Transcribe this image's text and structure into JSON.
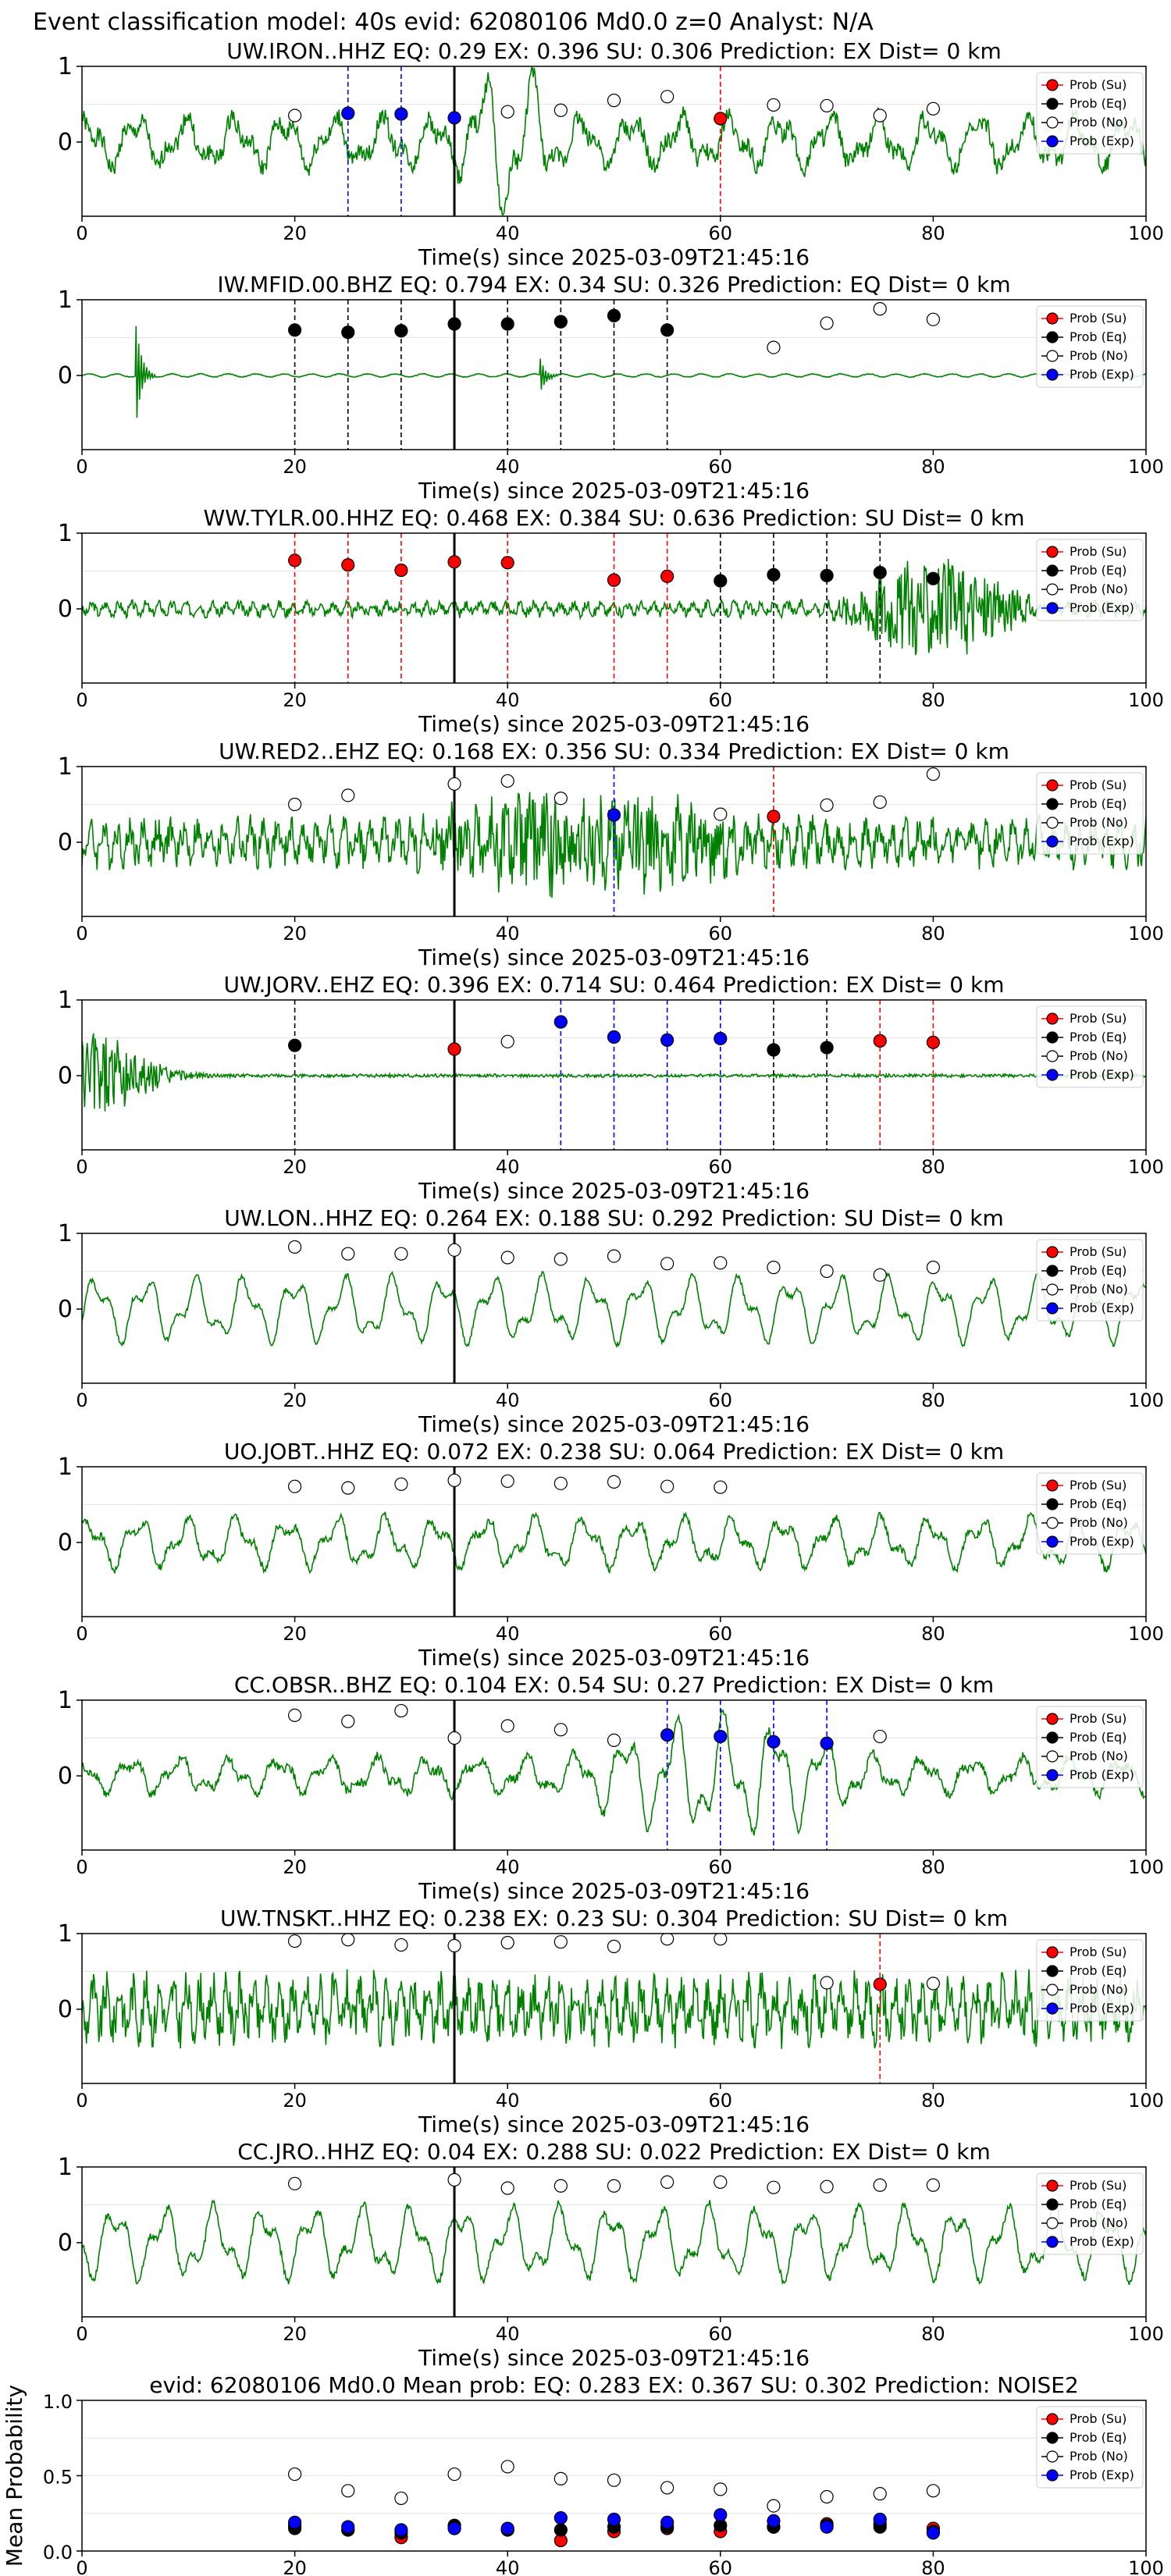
{
  "suptitle": "Event classification model: 40s evid: 62080106 Md0.0 z=0 Analyst: N/A",
  "colors": {
    "su": "#ff0000",
    "eq": "#000000",
    "no": "#ffffff",
    "exp": "#0000ff",
    "trace": "#008000"
  },
  "legend": [
    "Prob (Su)",
    "Prob (Eq)",
    "Prob (No)",
    "Prob (Exp)"
  ],
  "xlabel": "Time(s) since 2025-03-09T21:45:16",
  "chart_data": [
    {
      "type": "line",
      "title": "UW.IRON..HHZ   EQ: 0.29   EX: 0.396   SU: 0.306    Prediction: EX    Dist= 0 km",
      "xlabel": "Time(s) since 2025-03-09T21:45:16",
      "xlim": [
        0,
        100
      ],
      "xticks": [
        0,
        20,
        40,
        60,
        80,
        100
      ],
      "yticks": [
        0,
        1
      ],
      "event_line": 35,
      "trace": {
        "seed": 1,
        "kind": "osc",
        "amp": 0.35,
        "noise": 0.12,
        "burst": [
          35,
          45,
          0.8
        ]
      },
      "points": [
        [
          20,
          "no",
          0.35
        ],
        [
          25,
          "exp",
          0.38
        ],
        [
          30,
          "exp",
          0.37
        ],
        [
          35,
          "exp",
          0.32
        ],
        [
          40,
          "no",
          0.4
        ],
        [
          45,
          "no",
          0.42
        ],
        [
          50,
          "no",
          0.55
        ],
        [
          55,
          "no",
          0.6
        ],
        [
          60,
          "su",
          0.31
        ],
        [
          65,
          "no",
          0.49
        ],
        [
          70,
          "no",
          0.48
        ],
        [
          75,
          "no",
          0.35
        ],
        [
          80,
          "no",
          0.44
        ]
      ],
      "marks": [
        [
          25,
          "exp"
        ],
        [
          30,
          "exp"
        ],
        [
          60,
          "su"
        ]
      ]
    },
    {
      "type": "line",
      "title": "IW.MFID.00.BHZ   EQ: 0.794   EX: 0.34   SU: 0.326    Prediction: EQ    Dist= 0 km",
      "xlabel": "Time(s) since 2025-03-09T21:45:16",
      "xlim": [
        0,
        100
      ],
      "xticks": [
        0,
        20,
        40,
        60,
        80,
        100
      ],
      "yticks": [
        0,
        1
      ],
      "event_line": 35,
      "trace": {
        "seed": 2,
        "kind": "flat",
        "amp": 0.02,
        "noise": 0.01,
        "spikes": [
          [
            5,
            0.9
          ],
          [
            43,
            0.3
          ]
        ]
      },
      "points": [
        [
          20,
          "eq",
          0.6
        ],
        [
          25,
          "eq",
          0.57
        ],
        [
          30,
          "eq",
          0.59
        ],
        [
          35,
          "eq",
          0.68
        ],
        [
          40,
          "eq",
          0.68
        ],
        [
          45,
          "eq",
          0.71
        ],
        [
          50,
          "eq",
          0.79
        ],
        [
          55,
          "eq",
          0.6
        ],
        [
          65,
          "no",
          0.37
        ],
        [
          70,
          "no",
          0.69
        ],
        [
          75,
          "no",
          0.88
        ],
        [
          80,
          "no",
          0.74
        ]
      ],
      "marks": [
        [
          20,
          "eq"
        ],
        [
          25,
          "eq"
        ],
        [
          30,
          "eq"
        ],
        [
          40,
          "eq"
        ],
        [
          45,
          "eq"
        ],
        [
          50,
          "eq"
        ],
        [
          55,
          "eq"
        ]
      ]
    },
    {
      "type": "line",
      "title": "WW.TYLR.00.HHZ   EQ: 0.468   EX: 0.384   SU: 0.636    Prediction: SU    Dist= 0 km",
      "xlabel": "Time(s) since 2025-03-09T21:45:16",
      "xlim": [
        0,
        100
      ],
      "xticks": [
        0,
        20,
        40,
        60,
        80,
        100
      ],
      "yticks": [
        0,
        1
      ],
      "event_line": 35,
      "trace": {
        "seed": 3,
        "kind": "noise",
        "amp": 0.08,
        "noise": 0.06,
        "burst": [
          70,
          90,
          0.7
        ]
      },
      "points": [
        [
          20,
          "su",
          0.64
        ],
        [
          25,
          "su",
          0.58
        ],
        [
          30,
          "su",
          0.51
        ],
        [
          35,
          "su",
          0.62
        ],
        [
          40,
          "su",
          0.61
        ],
        [
          50,
          "su",
          0.38
        ],
        [
          55,
          "su",
          0.43
        ],
        [
          60,
          "eq",
          0.37
        ],
        [
          65,
          "eq",
          0.45
        ],
        [
          70,
          "eq",
          0.44
        ],
        [
          75,
          "eq",
          0.48
        ],
        [
          80,
          "eq",
          0.4
        ]
      ],
      "marks": [
        [
          20,
          "su"
        ],
        [
          25,
          "su"
        ],
        [
          30,
          "su"
        ],
        [
          40,
          "su"
        ],
        [
          50,
          "su"
        ],
        [
          55,
          "su"
        ],
        [
          60,
          "eq"
        ],
        [
          65,
          "eq"
        ],
        [
          70,
          "eq"
        ],
        [
          75,
          "eq"
        ]
      ]
    },
    {
      "type": "line",
      "title": "UW.RED2..EHZ   EQ: 0.168   EX: 0.356   SU: 0.334    Prediction: EX    Dist= 0 km",
      "xlabel": "Time(s) since 2025-03-09T21:45:16",
      "xlim": [
        0,
        100
      ],
      "xticks": [
        0,
        20,
        40,
        60,
        80,
        100
      ],
      "yticks": [
        0,
        1
      ],
      "event_line": 35,
      "trace": {
        "seed": 4,
        "kind": "noise",
        "amp": 0.25,
        "noise": 0.18,
        "burst": [
          30,
          65,
          0.5
        ]
      },
      "points": [
        [
          20,
          "no",
          0.5
        ],
        [
          25,
          "no",
          0.62
        ],
        [
          35,
          "no",
          0.77
        ],
        [
          40,
          "no",
          0.81
        ],
        [
          45,
          "no",
          0.58
        ],
        [
          50,
          "exp",
          0.36
        ],
        [
          60,
          "no",
          0.37
        ],
        [
          65,
          "su",
          0.34
        ],
        [
          70,
          "no",
          0.49
        ],
        [
          75,
          "no",
          0.53
        ],
        [
          80,
          "no",
          0.9
        ]
      ],
      "marks": [
        [
          50,
          "exp"
        ],
        [
          65,
          "su"
        ]
      ]
    },
    {
      "type": "line",
      "title": "UW.JORV..EHZ   EQ: 0.396   EX: 0.714   SU: 0.464    Prediction: EX    Dist= 0 km",
      "xlabel": "Time(s) since 2025-03-09T21:45:16",
      "xlim": [
        0,
        100
      ],
      "xticks": [
        0,
        20,
        40,
        60,
        80,
        100
      ],
      "yticks": [
        0,
        1
      ],
      "event_line": 35,
      "trace": {
        "seed": 5,
        "kind": "decay",
        "amp": 0.6,
        "noise": 0.01,
        "burst": [
          0,
          10,
          0.6
        ]
      },
      "points": [
        [
          20,
          "eq",
          0.4
        ],
        [
          35,
          "su",
          0.35
        ],
        [
          40,
          "no",
          0.45
        ],
        [
          45,
          "exp",
          0.71
        ],
        [
          50,
          "exp",
          0.51
        ],
        [
          55,
          "exp",
          0.47
        ],
        [
          60,
          "exp",
          0.49
        ],
        [
          65,
          "eq",
          0.34
        ],
        [
          70,
          "eq",
          0.37
        ],
        [
          75,
          "su",
          0.46
        ],
        [
          80,
          "su",
          0.44
        ]
      ],
      "marks": [
        [
          20,
          "eq"
        ],
        [
          45,
          "exp"
        ],
        [
          50,
          "exp"
        ],
        [
          55,
          "exp"
        ],
        [
          60,
          "exp"
        ],
        [
          65,
          "eq"
        ],
        [
          70,
          "eq"
        ],
        [
          75,
          "su"
        ],
        [
          80,
          "su"
        ]
      ]
    },
    {
      "type": "line",
      "title": "UW.LON..HHZ   EQ: 0.264   EX: 0.188   SU: 0.292    Prediction: SU    Dist= 0 km",
      "xlabel": "Time(s) since 2025-03-09T21:45:16",
      "xlim": [
        0,
        100
      ],
      "xticks": [
        0,
        20,
        40,
        60,
        80,
        100
      ],
      "yticks": [
        0,
        1
      ],
      "event_line": 35,
      "trace": {
        "seed": 6,
        "kind": "osc",
        "amp": 0.45,
        "noise": 0.03
      },
      "points": [
        [
          20,
          "no",
          0.82
        ],
        [
          25,
          "no",
          0.73
        ],
        [
          30,
          "no",
          0.73
        ],
        [
          35,
          "no",
          0.78
        ],
        [
          40,
          "no",
          0.68
        ],
        [
          45,
          "no",
          0.66
        ],
        [
          50,
          "no",
          0.7
        ],
        [
          55,
          "no",
          0.6
        ],
        [
          60,
          "no",
          0.61
        ],
        [
          65,
          "no",
          0.55
        ],
        [
          70,
          "no",
          0.5
        ],
        [
          75,
          "no",
          0.45
        ],
        [
          80,
          "no",
          0.55
        ]
      ],
      "marks": []
    },
    {
      "type": "line",
      "title": "UO.JOBT..HHZ   EQ: 0.072   EX: 0.238   SU: 0.064    Prediction: EX    Dist= 0 km",
      "xlabel": "Time(s) since 2025-03-09T21:45:16",
      "xlim": [
        0,
        100
      ],
      "xticks": [
        0,
        20,
        40,
        60,
        80,
        100
      ],
      "yticks": [
        0,
        1
      ],
      "event_line": 35,
      "trace": {
        "seed": 7,
        "kind": "osc",
        "amp": 0.35,
        "noise": 0.05
      },
      "points": [
        [
          20,
          "no",
          0.74
        ],
        [
          25,
          "no",
          0.72
        ],
        [
          30,
          "no",
          0.77
        ],
        [
          35,
          "no",
          0.82
        ],
        [
          40,
          "no",
          0.81
        ],
        [
          45,
          "no",
          0.78
        ],
        [
          50,
          "no",
          0.8
        ],
        [
          55,
          "no",
          0.74
        ],
        [
          60,
          "no",
          0.73
        ]
      ],
      "marks": []
    },
    {
      "type": "line",
      "title": "CC.OBSR..BHZ   EQ: 0.104   EX: 0.54   SU: 0.27    Prediction: EX    Dist= 0 km",
      "xlabel": "Time(s) since 2025-03-09T21:45:16",
      "xlim": [
        0,
        100
      ],
      "xticks": [
        0,
        20,
        40,
        60,
        80,
        100
      ],
      "yticks": [
        0,
        1
      ],
      "event_line": 35,
      "trace": {
        "seed": 8,
        "kind": "osc",
        "amp": 0.25,
        "noise": 0.06,
        "burst": [
          45,
          75,
          0.6
        ]
      },
      "points": [
        [
          20,
          "no",
          0.8
        ],
        [
          25,
          "no",
          0.72
        ],
        [
          30,
          "no",
          0.86
        ],
        [
          35,
          "no",
          0.5
        ],
        [
          40,
          "no",
          0.66
        ],
        [
          45,
          "no",
          0.61
        ],
        [
          50,
          "no",
          0.47
        ],
        [
          55,
          "exp",
          0.54
        ],
        [
          60,
          "exp",
          0.52
        ],
        [
          65,
          "exp",
          0.45
        ],
        [
          70,
          "exp",
          0.43
        ],
        [
          75,
          "no",
          0.52
        ]
      ],
      "marks": [
        [
          55,
          "exp"
        ],
        [
          60,
          "exp"
        ],
        [
          65,
          "exp"
        ],
        [
          70,
          "exp"
        ]
      ]
    },
    {
      "type": "line",
      "title": "UW.TNSKT..HHZ   EQ: 0.238   EX: 0.23   SU: 0.304    Prediction: SU    Dist= 0 km",
      "xlabel": "Time(s) since 2025-03-09T21:45:16",
      "xlim": [
        0,
        100
      ],
      "xticks": [
        0,
        20,
        40,
        60,
        80,
        100
      ],
      "yticks": [
        0,
        1
      ],
      "event_line": 35,
      "trace": {
        "seed": 9,
        "kind": "noise",
        "amp": 0.35,
        "noise": 0.25
      },
      "points": [
        [
          20,
          "no",
          0.9
        ],
        [
          25,
          "no",
          0.92
        ],
        [
          30,
          "no",
          0.85
        ],
        [
          35,
          "no",
          0.84
        ],
        [
          40,
          "no",
          0.88
        ],
        [
          45,
          "no",
          0.89
        ],
        [
          50,
          "no",
          0.83
        ],
        [
          55,
          "no",
          0.93
        ],
        [
          60,
          "no",
          0.93
        ],
        [
          70,
          "no",
          0.35
        ],
        [
          75,
          "su",
          0.33
        ],
        [
          80,
          "no",
          0.34
        ]
      ],
      "marks": [
        [
          75,
          "su"
        ]
      ]
    },
    {
      "type": "line",
      "title": "CC.JRO..HHZ   EQ: 0.04   EX: 0.288   SU: 0.022    Prediction: EX    Dist= 0 km",
      "xlabel": "Time(s) since 2025-03-09T21:45:16",
      "xlim": [
        0,
        100
      ],
      "xticks": [
        0,
        20,
        40,
        60,
        80,
        100
      ],
      "yticks": [
        0,
        1
      ],
      "event_line": 35,
      "trace": {
        "seed": 10,
        "kind": "osc",
        "amp": 0.5,
        "noise": 0.05
      },
      "points": [
        [
          20,
          "no",
          0.78
        ],
        [
          35,
          "no",
          0.83
        ],
        [
          40,
          "no",
          0.72
        ],
        [
          45,
          "no",
          0.75
        ],
        [
          50,
          "no",
          0.75
        ],
        [
          55,
          "no",
          0.8
        ],
        [
          60,
          "no",
          0.8
        ],
        [
          65,
          "no",
          0.73
        ],
        [
          70,
          "no",
          0.74
        ],
        [
          75,
          "no",
          0.76
        ],
        [
          80,
          "no",
          0.76
        ]
      ],
      "marks": []
    },
    {
      "type": "scatter",
      "title": "evid: 62080106  Md0.0   Mean prob:   EQ: 0.283  EX: 0.367  SU: 0.302   Prediction: NOISE2",
      "xlabel": "",
      "ylabel": "Mean Probability",
      "xlim": [
        0,
        100
      ],
      "ylim": [
        0,
        1
      ],
      "xticks": [
        0,
        20,
        40,
        60,
        80,
        100
      ],
      "yticks": [
        0.0,
        0.5,
        1.0
      ],
      "series": [
        {
          "name": "Prob (Su)",
          "key": "su",
          "x": [
            20,
            25,
            30,
            35,
            40,
            45,
            50,
            55,
            60,
            65,
            70,
            75,
            80
          ],
          "y": [
            0.17,
            0.14,
            0.09,
            0.15,
            0.14,
            0.07,
            0.13,
            0.15,
            0.13,
            0.16,
            0.18,
            0.18,
            0.15
          ]
        },
        {
          "name": "Prob (Eq)",
          "key": "eq",
          "x": [
            20,
            25,
            30,
            35,
            40,
            45,
            50,
            55,
            60,
            65,
            70,
            75,
            80
          ],
          "y": [
            0.15,
            0.14,
            0.12,
            0.17,
            0.14,
            0.14,
            0.16,
            0.16,
            0.17,
            0.16,
            0.17,
            0.16,
            0.13
          ]
        },
        {
          "name": "Prob (No)",
          "key": "no",
          "x": [
            20,
            25,
            30,
            35,
            40,
            45,
            50,
            55,
            60,
            65,
            70,
            75,
            80
          ],
          "y": [
            0.51,
            0.4,
            0.35,
            0.51,
            0.56,
            0.48,
            0.47,
            0.42,
            0.41,
            0.3,
            0.36,
            0.38,
            0.4
          ]
        },
        {
          "name": "Prob (Exp)",
          "key": "exp",
          "x": [
            20,
            25,
            30,
            35,
            40,
            45,
            50,
            55,
            60,
            65,
            70,
            75,
            80
          ],
          "y": [
            0.19,
            0.16,
            0.14,
            0.15,
            0.15,
            0.22,
            0.21,
            0.19,
            0.24,
            0.2,
            0.16,
            0.21,
            0.12
          ]
        }
      ]
    }
  ]
}
